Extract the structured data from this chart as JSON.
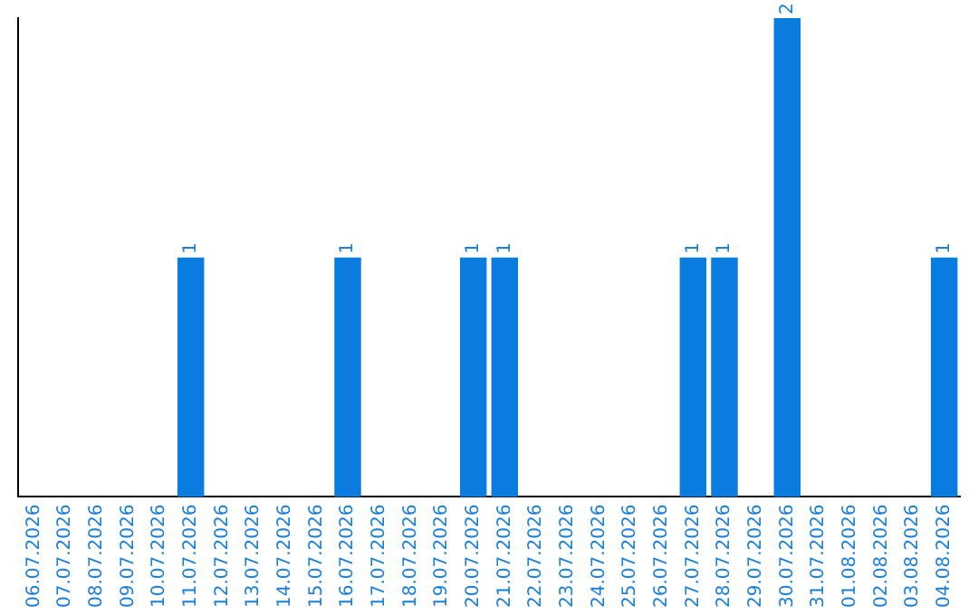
{
  "chart_data": {
    "type": "bar",
    "categories": [
      "06.07.2026",
      "07.07.2026",
      "08.07.2026",
      "09.07.2026",
      "10.07.2026",
      "11.07.2026",
      "12.07.2026",
      "13.07.2026",
      "14.07.2026",
      "15.07.2026",
      "16.07.2026",
      "17.07.2026",
      "18.07.2026",
      "19.07.2026",
      "20.07.2026",
      "21.07.2026",
      "22.07.2026",
      "23.07.2026",
      "24.07.2026",
      "25.07.2026",
      "26.07.2026",
      "27.07.2026",
      "28.07.2026",
      "29.07.2026",
      "30.07.2026",
      "31.07.2026",
      "01.08.2026",
      "02.08.2026",
      "03.08.2026",
      "04.08.2026"
    ],
    "values": [
      0,
      0,
      0,
      0,
      0,
      1,
      0,
      0,
      0,
      0,
      1,
      0,
      0,
      0,
      1,
      1,
      0,
      0,
      0,
      0,
      0,
      1,
      1,
      0,
      2,
      0,
      0,
      0,
      0,
      1
    ],
    "value_labels": [
      null,
      null,
      null,
      null,
      null,
      "1",
      null,
      null,
      null,
      null,
      "1",
      null,
      null,
      null,
      "1",
      "1",
      null,
      null,
      null,
      null,
      null,
      "1",
      "1",
      null,
      "2",
      null,
      null,
      null,
      null,
      "1"
    ],
    "color": "#0a7ce0",
    "tick_labels": "x",
    "grid": false,
    "legend": false
  }
}
